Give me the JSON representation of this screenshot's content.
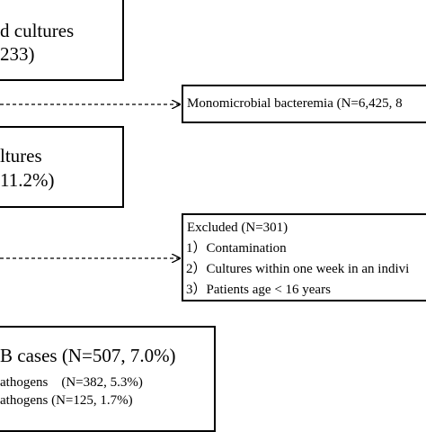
{
  "box_blood_cultures": {
    "line1": "d cultures",
    "line2": "233)"
  },
  "box_positive_cultures": {
    "line1": "ltures",
    "line2": "11.2%)"
  },
  "box_monomicrobial": {
    "text": "Monomicrobial bacteremia (N=6,425, 8"
  },
  "box_excluded": {
    "title": "Excluded (N=301)",
    "items": [
      "1）Contamination",
      "2）Cultures within one week in an indivi",
      "3）Patients age < 16 years"
    ]
  },
  "box_cases": {
    "title": "B cases (N=507, 7.0%)",
    "row1": "athogens    (N=382, 5.3%)",
    "row2": "athogens (N=125, 1.7%)"
  },
  "colors": {
    "line": "#000000",
    "background": "#ffffff"
  }
}
